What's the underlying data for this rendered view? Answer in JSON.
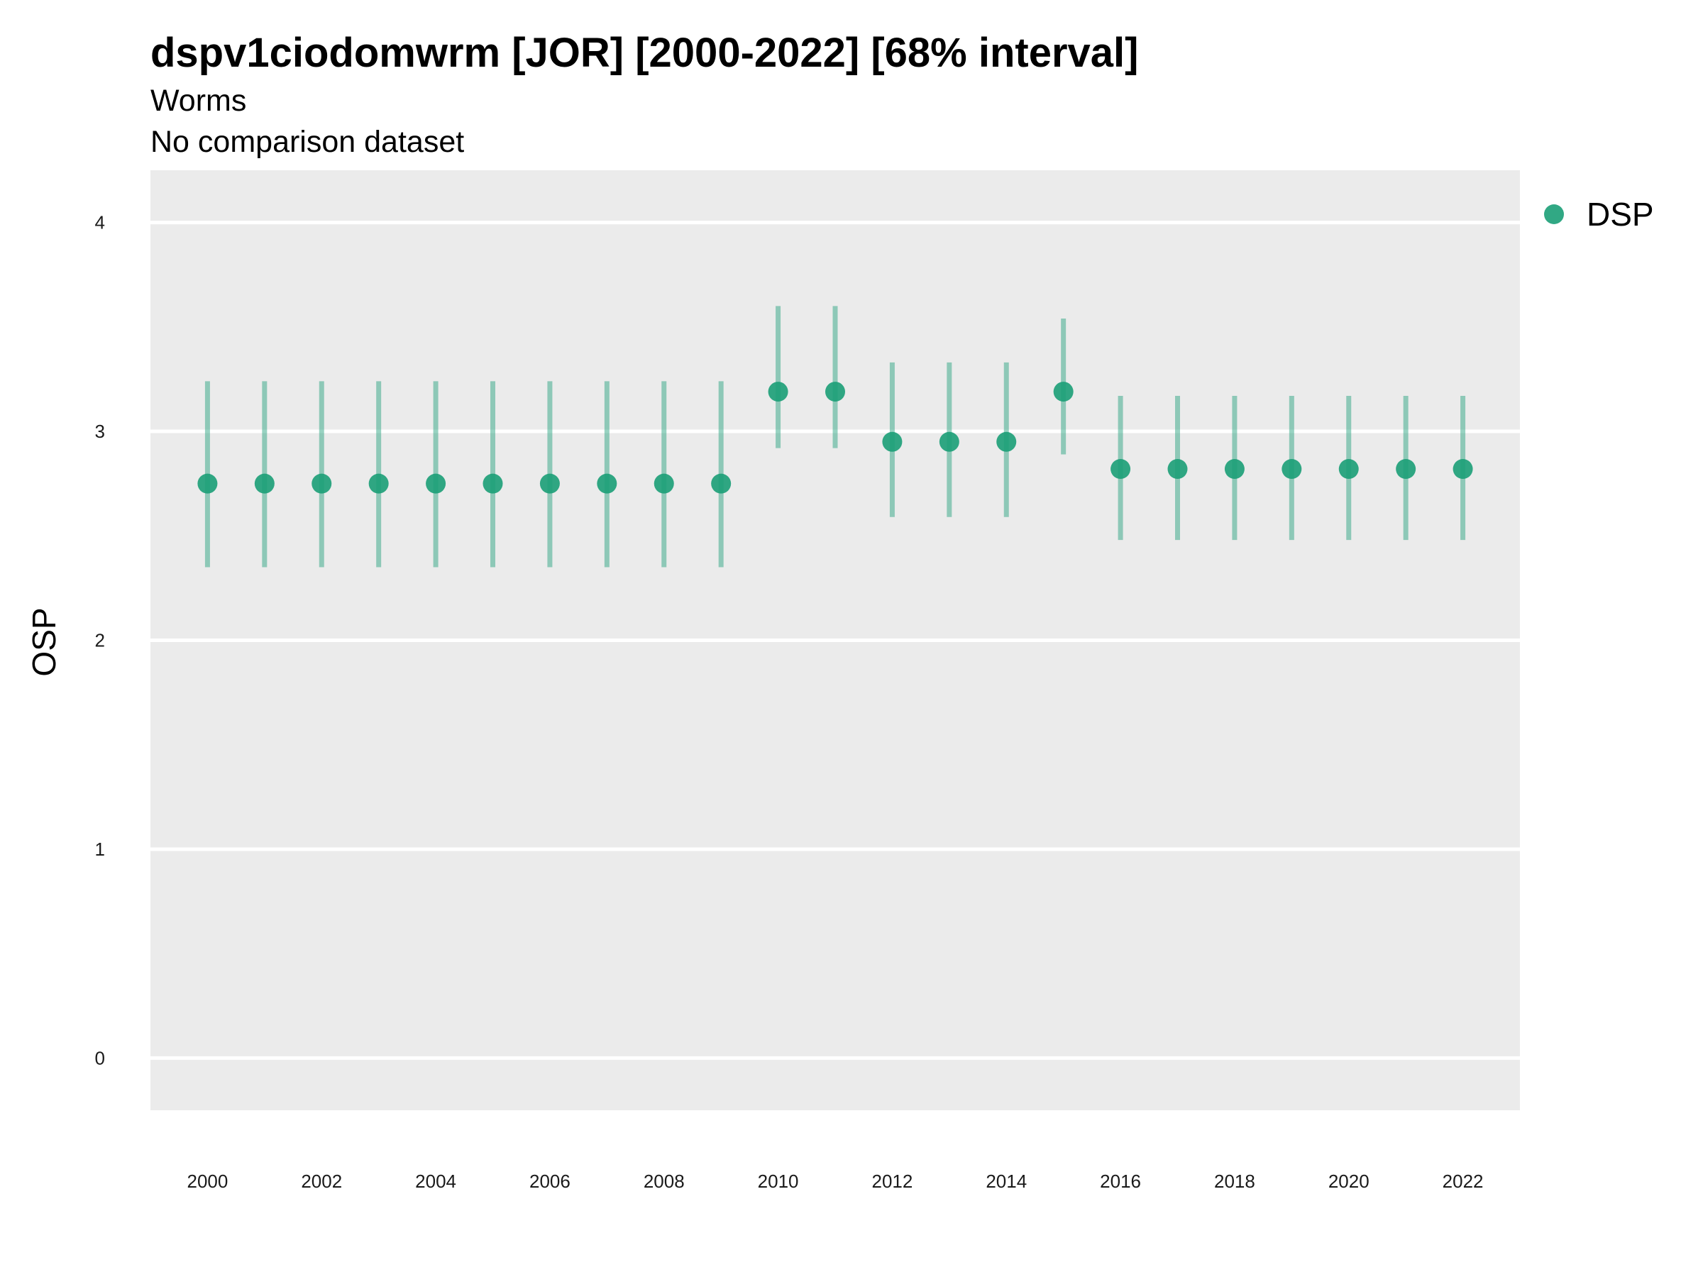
{
  "chart_data": {
    "type": "scatter",
    "title": "dspv1ciodomwrm [JOR] [2000-2022] [68% interval]",
    "subtitle": "Worms",
    "caption_line": "No comparison dataset",
    "xlabel": "",
    "ylabel": "OSP",
    "x_ticks": [
      "2000",
      "2002",
      "2004",
      "2006",
      "2008",
      "2010",
      "2012",
      "2014",
      "2016",
      "2018",
      "2020",
      "2022"
    ],
    "y_ticks": [
      "0",
      "1",
      "2",
      "3",
      "4"
    ],
    "xlim": [
      1999,
      2023
    ],
    "ylim": [
      -0.25,
      4.25
    ],
    "grid": true,
    "legend_position": "right",
    "series": [
      {
        "name": "DSP",
        "color": "#1b9e77",
        "x": [
          2000,
          2001,
          2002,
          2003,
          2004,
          2005,
          2006,
          2007,
          2008,
          2009,
          2010,
          2011,
          2012,
          2013,
          2014,
          2015,
          2016,
          2017,
          2018,
          2019,
          2020,
          2021,
          2022
        ],
        "y": [
          2.75,
          2.75,
          2.75,
          2.75,
          2.75,
          2.75,
          2.75,
          2.75,
          2.75,
          2.75,
          3.19,
          3.19,
          2.95,
          2.95,
          2.95,
          3.19,
          2.82,
          2.82,
          2.82,
          2.82,
          2.82,
          2.82,
          2.82
        ],
        "lower": [
          2.35,
          2.35,
          2.35,
          2.35,
          2.35,
          2.35,
          2.35,
          2.35,
          2.35,
          2.35,
          2.92,
          2.92,
          2.59,
          2.59,
          2.59,
          2.89,
          2.48,
          2.48,
          2.48,
          2.48,
          2.48,
          2.48,
          2.48
        ],
        "upper": [
          3.24,
          3.24,
          3.24,
          3.24,
          3.24,
          3.24,
          3.24,
          3.24,
          3.24,
          3.24,
          3.6,
          3.6,
          3.33,
          3.33,
          3.33,
          3.54,
          3.17,
          3.17,
          3.17,
          3.17,
          3.17,
          3.17,
          3.17
        ]
      }
    ]
  }
}
